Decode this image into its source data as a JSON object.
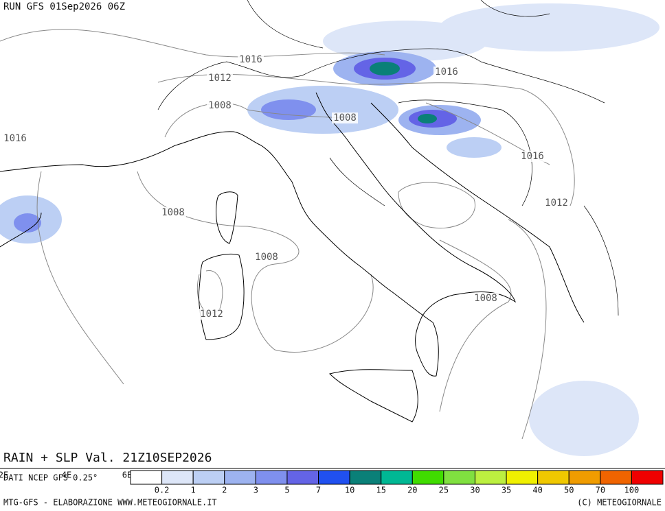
{
  "header": {
    "run": "RUN GFS 01Sep2026 06Z"
  },
  "isobar_labels": [
    "1016",
    "1012",
    "1008",
    "1016",
    "1008",
    "1016",
    "1016",
    "1012",
    "1008",
    "1008",
    "1012",
    "1008"
  ],
  "map_title": "RAIN + SLP Val. 21Z10SEP2026",
  "source": "DATI NCEP GFS 0.25°",
  "axis_labels": [
    "2E",
    "4E",
    "6E"
  ],
  "legend": {
    "labels": [
      "0.2",
      "1",
      "2",
      "3",
      "5",
      "7",
      "10",
      "15",
      "20",
      "25",
      "30",
      "35",
      "40",
      "50",
      "70",
      "100"
    ],
    "colors": [
      "#ffffff",
      "#dde6f8",
      "#bccff4",
      "#9db3f0",
      "#7f90ee",
      "#6464e6",
      "#2050f0",
      "#0a8078",
      "#00b894",
      "#40dc00",
      "#80e040",
      "#bcf040",
      "#f0f000",
      "#f0c800",
      "#f09c00",
      "#f06400",
      "#f00000"
    ]
  },
  "footer": {
    "left": "MTG-GFS - ELABORAZIONE WWW.METEOGIORNALE.IT",
    "right": "(C) METEOGIORNALE"
  }
}
